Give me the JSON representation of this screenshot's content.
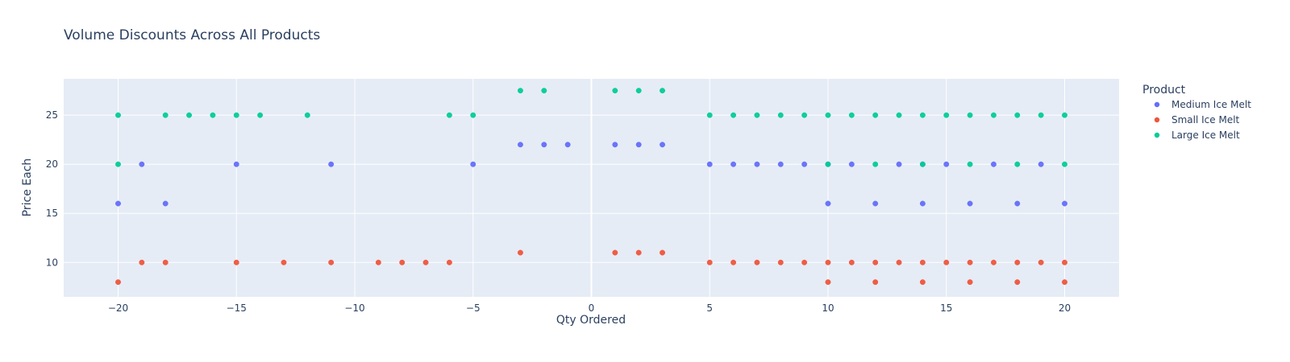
{
  "chart_data": {
    "type": "scatter",
    "title": "Volume Discounts Across All Products",
    "xlabel": "Qty Ordered",
    "ylabel": "Price Each",
    "xlim": [
      -22.3,
      22.3
    ],
    "ylim": [
      6.5,
      28.7
    ],
    "xticks": [
      -20,
      -15,
      -10,
      -5,
      0,
      5,
      10,
      15,
      20
    ],
    "xtick_labels": [
      "−20",
      "−15",
      "−10",
      "−5",
      "0",
      "5",
      "10",
      "15",
      "20"
    ],
    "yticks": [
      10,
      15,
      20,
      25
    ],
    "ytick_labels": [
      "10",
      "15",
      "20",
      "25"
    ],
    "grid": true,
    "legend_position": "right",
    "legend_title": "Product",
    "background_color": "#e5ecf6",
    "series": [
      {
        "name": "Medium Ice Melt",
        "color": "#636efa",
        "points": [
          [
            -20,
            16
          ],
          [
            -19,
            20
          ],
          [
            -18,
            16
          ],
          [
            -15,
            20
          ],
          [
            -11,
            20
          ],
          [
            -5,
            20
          ],
          [
            -3,
            22
          ],
          [
            -2,
            22
          ],
          [
            -1,
            22
          ],
          [
            1,
            22
          ],
          [
            2,
            22
          ],
          [
            3,
            22
          ],
          [
            5,
            20
          ],
          [
            6,
            20
          ],
          [
            7,
            20
          ],
          [
            8,
            20
          ],
          [
            9,
            20
          ],
          [
            10,
            20
          ],
          [
            11,
            20
          ],
          [
            13,
            20
          ],
          [
            14,
            20
          ],
          [
            15,
            20
          ],
          [
            17,
            20
          ],
          [
            19,
            20
          ],
          [
            10,
            16
          ],
          [
            12,
            16
          ],
          [
            14,
            16
          ],
          [
            16,
            16
          ],
          [
            18,
            16
          ],
          [
            20,
            16
          ]
        ]
      },
      {
        "name": "Small Ice Melt",
        "color": "#ef553b",
        "points": [
          [
            -20,
            8
          ],
          [
            -19,
            10
          ],
          [
            -18,
            10
          ],
          [
            -15,
            10
          ],
          [
            -13,
            10
          ],
          [
            -11,
            10
          ],
          [
            -9,
            10
          ],
          [
            -8,
            10
          ],
          [
            -7,
            10
          ],
          [
            -6,
            10
          ],
          [
            -3,
            11
          ],
          [
            1,
            11
          ],
          [
            2,
            11
          ],
          [
            3,
            11
          ],
          [
            5,
            10
          ],
          [
            6,
            10
          ],
          [
            7,
            10
          ],
          [
            8,
            10
          ],
          [
            9,
            10
          ],
          [
            10,
            10
          ],
          [
            11,
            10
          ],
          [
            12,
            10
          ],
          [
            13,
            10
          ],
          [
            14,
            10
          ],
          [
            15,
            10
          ],
          [
            16,
            10
          ],
          [
            17,
            10
          ],
          [
            18,
            10
          ],
          [
            19,
            10
          ],
          [
            20,
            10
          ],
          [
            10,
            8
          ],
          [
            12,
            8
          ],
          [
            14,
            8
          ],
          [
            16,
            8
          ],
          [
            18,
            8
          ],
          [
            20,
            8
          ]
        ]
      },
      {
        "name": "Large Ice Melt",
        "color": "#00cc96",
        "points": [
          [
            -20,
            25
          ],
          [
            -20,
            20
          ],
          [
            -18,
            25
          ],
          [
            -17,
            25
          ],
          [
            -16,
            25
          ],
          [
            -15,
            25
          ],
          [
            -14,
            25
          ],
          [
            -12,
            25
          ],
          [
            -6,
            25
          ],
          [
            -5,
            25
          ],
          [
            -3,
            27.5
          ],
          [
            -2,
            27.5
          ],
          [
            1,
            27.5
          ],
          [
            2,
            27.5
          ],
          [
            3,
            27.5
          ],
          [
            5,
            25
          ],
          [
            6,
            25
          ],
          [
            7,
            25
          ],
          [
            8,
            25
          ],
          [
            9,
            25
          ],
          [
            10,
            25
          ],
          [
            11,
            25
          ],
          [
            12,
            25
          ],
          [
            13,
            25
          ],
          [
            14,
            25
          ],
          [
            15,
            25
          ],
          [
            16,
            25
          ],
          [
            17,
            25
          ],
          [
            18,
            25
          ],
          [
            19,
            25
          ],
          [
            20,
            25
          ],
          [
            10,
            20
          ],
          [
            12,
            20
          ],
          [
            14,
            20
          ],
          [
            16,
            20
          ],
          [
            18,
            20
          ],
          [
            20,
            20
          ]
        ]
      }
    ]
  }
}
